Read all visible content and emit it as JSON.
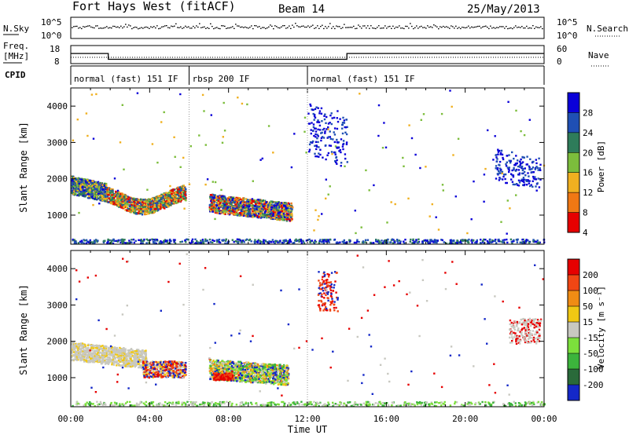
{
  "header": {
    "station": "Fort Hays West (fitACF)",
    "beam": "Beam 14",
    "date": "25/May/2013"
  },
  "top_panels": {
    "nsky_label": "N.Sky",
    "nsearch_label": "N.Search",
    "nsky_ticks": [
      "10^5",
      "10^0"
    ],
    "freq_label": "Freq.",
    "freq_unit": "[MHz]",
    "freq_ticks": [
      "18",
      "8"
    ],
    "nave_label": "Nave",
    "nave_ticks": [
      "60",
      "0"
    ],
    "cpid_label": "CPID",
    "cpid_segments": [
      {
        "label": "normal (fast) 151 IF",
        "start_h": 0,
        "end_h": 6
      },
      {
        "label": "rbsp 200 IF",
        "start_h": 6,
        "end_h": 12
      },
      {
        "label": "normal (fast) 151 IF",
        "start_h": 12,
        "end_h": 24
      }
    ],
    "freq_steps": [
      {
        "start_h": 0,
        "end_h": 1.9,
        "value": 13.6
      },
      {
        "start_h": 1.9,
        "end_h": 12,
        "value": 10.4
      },
      {
        "start_h": 12,
        "end_h": 14,
        "value": 10.4
      },
      {
        "start_h": 14,
        "end_h": 24,
        "value": 13.6
      }
    ]
  },
  "chart_data": [
    {
      "type": "heatmap",
      "name": "power",
      "ylabel": "Slant Range [km]",
      "yticks": [
        "4000",
        "3000",
        "2000",
        "1000"
      ],
      "ylim": [
        200,
        4500
      ],
      "colorbar_label": "Power [dB]",
      "colorbar_ticks": [
        "28",
        "24",
        "20",
        "16",
        "12",
        "8",
        "4"
      ],
      "colors": [
        "#0a00d8",
        "#1f4fb4",
        "#2e7c5a",
        "#7cbd3c",
        "#f0b020",
        "#f07814",
        "#e60000"
      ]
    },
    {
      "type": "heatmap",
      "name": "velocity",
      "xlabel": "Time UT",
      "ylabel": "Slant Range [km]",
      "yticks": [
        "4000",
        "3000",
        "2000",
        "1000"
      ],
      "ylim": [
        200,
        4500
      ],
      "xticks": [
        "00:00",
        "04:00",
        "08:00",
        "12:00",
        "16:00",
        "20:00",
        "00:00"
      ],
      "xlim": [
        0,
        24
      ],
      "colorbar_label": "Velocity [m s⁻¹]",
      "colorbar_ticks": [
        "200",
        "100",
        "50",
        "15",
        "-15",
        "-50",
        "-100",
        "-200"
      ],
      "colors": [
        "#1428c8",
        "#2a6a3a",
        "#3cb43c",
        "#7ce03c",
        "#c8c8c0",
        "#f0c814",
        "#f08c14",
        "#f04614",
        "#e60000"
      ]
    }
  ]
}
